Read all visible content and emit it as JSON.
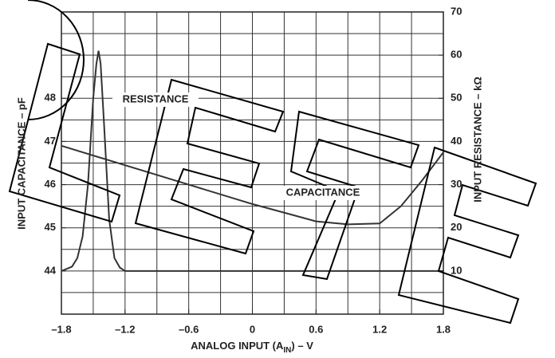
{
  "chart_data": {
    "type": "line",
    "xlabel_parts": [
      "ANALOG INPUT (A",
      "IN",
      ") – V"
    ],
    "ylabel": "INPUT CAPACITANCE – pF",
    "y2label": "INPUT RESISTANCE – kΩ",
    "xlim": [
      -1.8,
      1.8
    ],
    "xticks": [
      -1.8,
      -1.2,
      -0.6,
      0,
      0.6,
      1.2,
      1.8
    ],
    "xticks_labels": [
      "–1.8",
      "–1.2",
      "–0.6",
      "0",
      "0.6",
      "1.2",
      "1.8"
    ],
    "xgrid": [
      -1.5,
      -1.2,
      -0.9,
      -0.6,
      -0.3,
      0,
      0.3,
      0.6,
      0.9,
      1.2,
      1.5
    ],
    "ylim": [
      43,
      50
    ],
    "yticks": [
      44,
      45,
      46,
      47,
      48
    ],
    "y2lim": [
      0,
      70
    ],
    "y2ticks": [
      10,
      20,
      30,
      40,
      50,
      60,
      70
    ],
    "y2grid": [
      5,
      10,
      15,
      20,
      25,
      30,
      35,
      40,
      45,
      50,
      55,
      60,
      65
    ],
    "grid": true,
    "series": [
      {
        "name": "CAPACITANCE",
        "color": "#333333",
        "axis": "y",
        "x": [
          -1.8,
          -1.2,
          -0.6,
          0,
          0.6,
          0.9,
          1.2,
          1.4,
          1.6,
          1.8
        ],
        "values": [
          46.9,
          46.45,
          46.0,
          45.55,
          45.15,
          45.08,
          45.1,
          45.5,
          46.1,
          46.75
        ]
      },
      {
        "name": "RESISTANCE",
        "color": "#333333",
        "axis": "y2",
        "x": [
          -1.8,
          -1.7,
          -1.65,
          -1.6,
          -1.55,
          -1.5,
          -1.47,
          -1.45,
          -1.43,
          -1.4,
          -1.35,
          -1.3,
          -1.25,
          -1.2,
          1.8
        ],
        "values": [
          10,
          11,
          13,
          18,
          30,
          50,
          58,
          61,
          58,
          45,
          22,
          13,
          10.8,
          10,
          10
        ]
      }
    ]
  }
}
